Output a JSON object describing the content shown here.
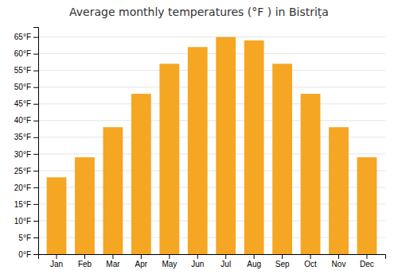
{
  "chart_data": {
    "type": "bar",
    "title": "Average monthly temperatures (°F ) in Bistrița",
    "categories": [
      "Jan",
      "Feb",
      "Mar",
      "Apr",
      "May",
      "Jun",
      "Jul",
      "Aug",
      "Sep",
      "Oct",
      "Nov",
      "Dec"
    ],
    "values": [
      23,
      29,
      38,
      48,
      57,
      62,
      65,
      64,
      57,
      48,
      38,
      29
    ],
    "color": "#F5A623",
    "ylim": [
      0,
      68
    ],
    "yticks": [
      {
        "value": 0,
        "label": "0°F"
      },
      {
        "value": 5,
        "label": "5°F"
      },
      {
        "value": 10,
        "label": "10°F"
      },
      {
        "value": 15,
        "label": "15°F"
      },
      {
        "value": 20,
        "label": "20°F"
      },
      {
        "value": 25,
        "label": "25°F"
      },
      {
        "value": 30,
        "label": "30°F"
      },
      {
        "value": 35,
        "label": "35°F"
      },
      {
        "value": 40,
        "label": "40°F"
      },
      {
        "value": 45,
        "label": "45°F"
      },
      {
        "value": 50,
        "label": "50°F"
      },
      {
        "value": 55,
        "label": "55°F"
      },
      {
        "value": 60,
        "label": "60°F"
      },
      {
        "value": 65,
        "label": "65°F"
      }
    ],
    "grid": true
  }
}
